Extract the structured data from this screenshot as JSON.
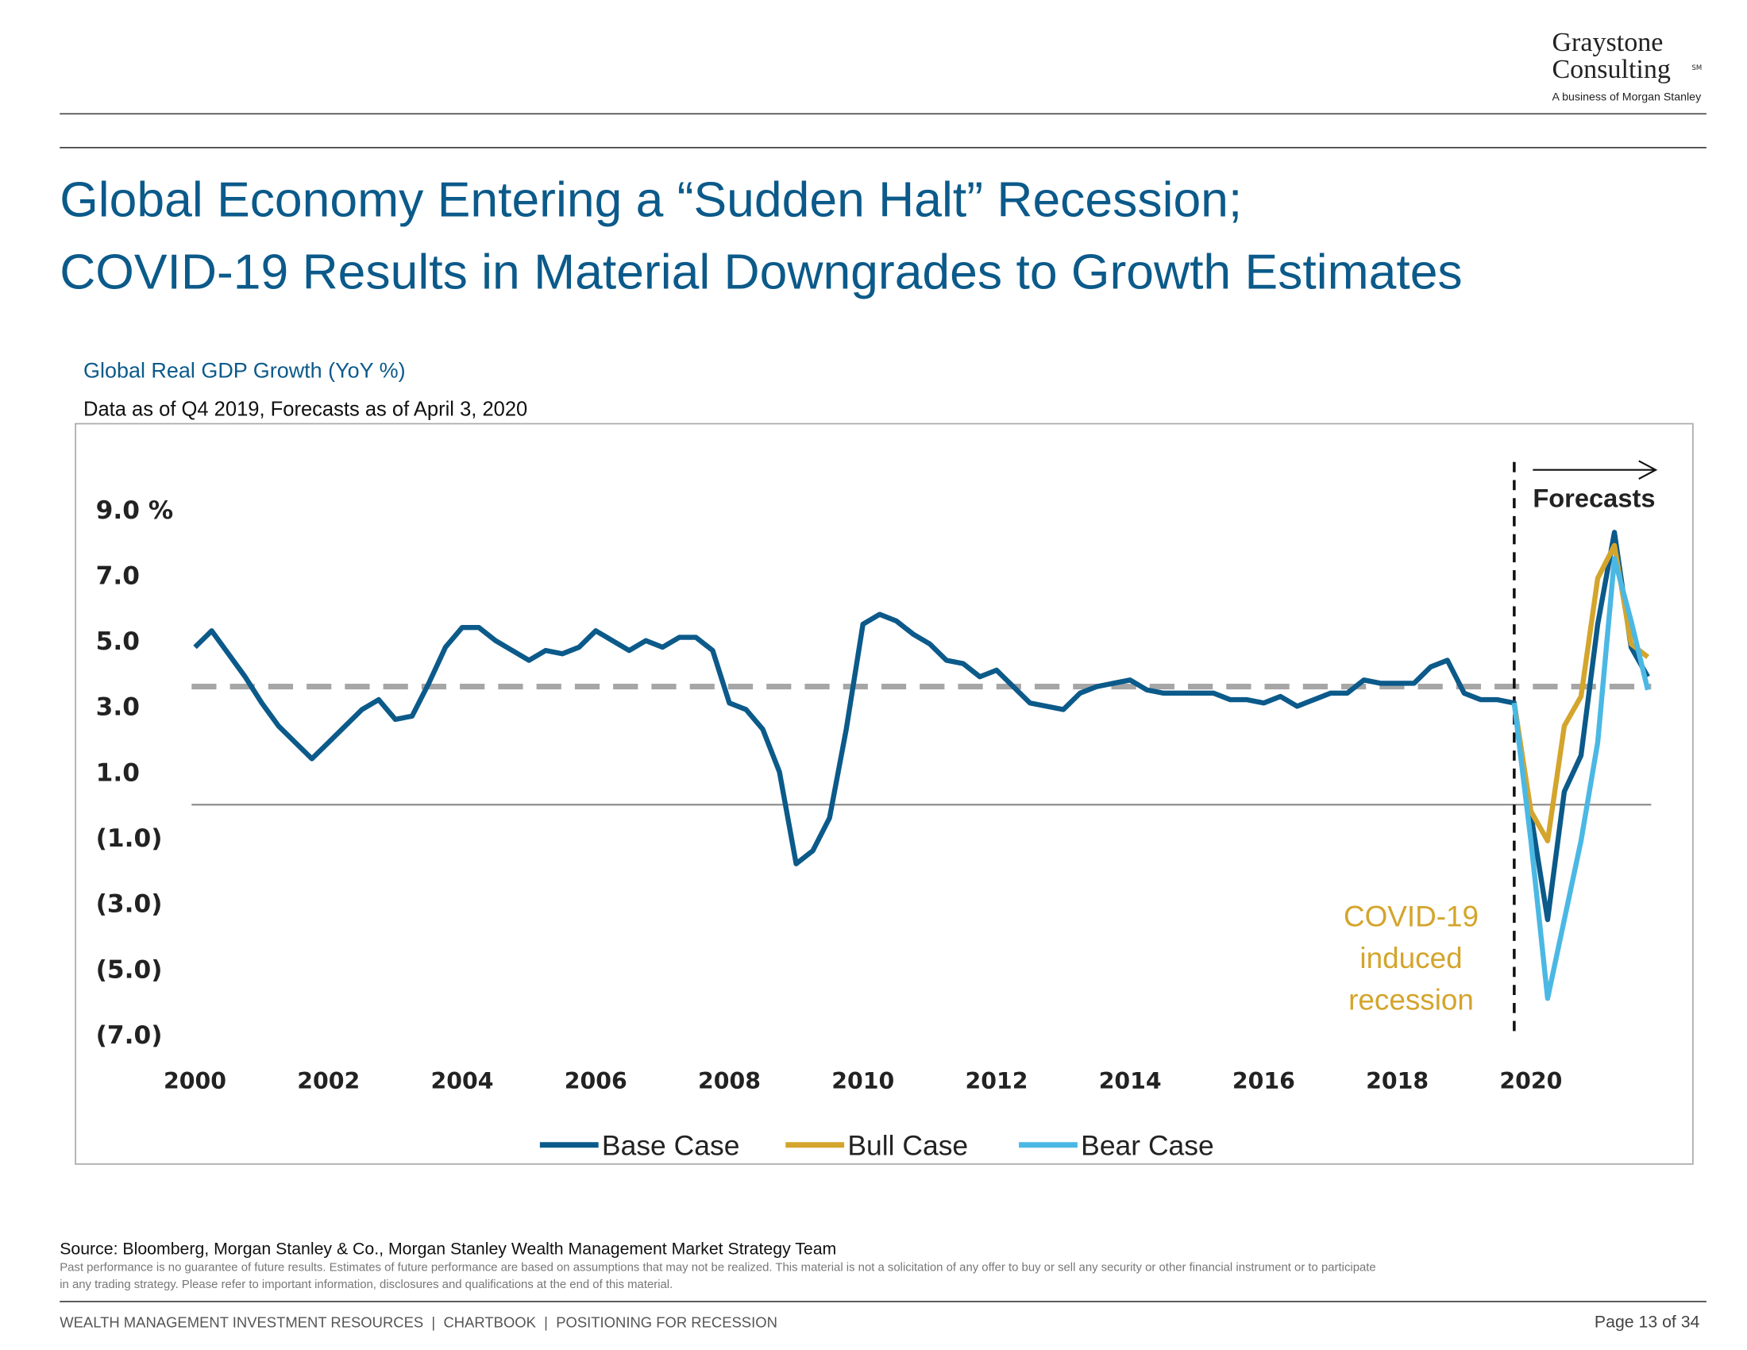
{
  "header": {
    "logo": [
      "Graystone",
      "Consulting"
    ],
    "logo_mark": "SM",
    "logo_tagline": "A business of Morgan Stanley",
    "title": [
      "Global Economy Entering a “Sudden Halt” Recession;",
      "COVID-19 Results in Material Downgrades to Growth Estimates"
    ]
  },
  "chart_data": {
    "type": "line",
    "title": "Global Real GDP Growth (YoY %)",
    "subtitle": "Data as of Q4 2019, Forecasts as of April 3, 2020",
    "x": [
      2000,
      2000.25,
      2000.5,
      2000.75,
      2001,
      2001.25,
      2001.5,
      2001.75,
      2002,
      2002.25,
      2002.5,
      2002.75,
      2003,
      2003.25,
      2003.5,
      2003.75,
      2004,
      2004.25,
      2004.5,
      2004.75,
      2005,
      2005.25,
      2005.5,
      2005.75,
      2006,
      2006.25,
      2006.5,
      2006.75,
      2007,
      2007.25,
      2007.5,
      2007.75,
      2008,
      2008.25,
      2008.5,
      2008.75,
      2009,
      2009.25,
      2009.5,
      2009.75,
      2010,
      2010.25,
      2010.5,
      2010.75,
      2011,
      2011.25,
      2011.5,
      2011.75,
      2012,
      2012.25,
      2012.5,
      2012.75,
      2013,
      2013.25,
      2013.5,
      2013.75,
      2014,
      2014.25,
      2014.5,
      2014.75,
      2015,
      2015.25,
      2015.5,
      2015.75,
      2016,
      2016.25,
      2016.5,
      2016.75,
      2017,
      2017.25,
      2017.5,
      2017.75,
      2018,
      2018.25,
      2018.5,
      2018.75,
      2019,
      2019.25,
      2019.5,
      2019.75,
      2020,
      2020.25,
      2020.5,
      2020.75,
      2021,
      2021.25,
      2021.5,
      2021.75
    ],
    "series": [
      {
        "name": "Base Case",
        "color": "#0b5a8a",
        "values": [
          4.8,
          5.3,
          4.6,
          3.9,
          3.1,
          2.4,
          1.9,
          1.4,
          1.9,
          2.4,
          2.9,
          3.2,
          2.6,
          2.7,
          3.7,
          4.8,
          5.4,
          5.4,
          5.0,
          4.7,
          4.4,
          4.7,
          4.6,
          4.8,
          5.3,
          5.0,
          4.7,
          5.0,
          4.8,
          5.1,
          5.1,
          4.7,
          3.1,
          2.9,
          2.3,
          1.0,
          -1.8,
          -1.4,
          -0.4,
          2.3,
          5.5,
          5.8,
          5.6,
          5.2,
          4.9,
          4.4,
          4.3,
          3.9,
          4.1,
          3.6,
          3.1,
          3.0,
          2.9,
          3.4,
          3.6,
          3.7,
          3.8,
          3.5,
          3.4,
          3.4,
          3.4,
          3.4,
          3.2,
          3.2,
          3.1,
          3.3,
          3.0,
          3.2,
          3.4,
          3.4,
          3.8,
          3.7,
          3.7,
          3.7,
          4.2,
          4.4,
          3.4,
          3.2,
          3.2,
          3.1,
          -0.3,
          -3.5,
          0.4,
          1.5,
          5.5,
          8.3,
          4.8,
          3.9
        ]
      },
      {
        "name": "Bull Case",
        "color": "#d4a52c",
        "values": [
          null,
          null,
          null,
          null,
          null,
          null,
          null,
          null,
          null,
          null,
          null,
          null,
          null,
          null,
          null,
          null,
          null,
          null,
          null,
          null,
          null,
          null,
          null,
          null,
          null,
          null,
          null,
          null,
          null,
          null,
          null,
          null,
          null,
          null,
          null,
          null,
          null,
          null,
          null,
          null,
          null,
          null,
          null,
          null,
          null,
          null,
          null,
          null,
          null,
          null,
          null,
          null,
          null,
          null,
          null,
          null,
          null,
          null,
          null,
          null,
          null,
          null,
          null,
          null,
          null,
          null,
          null,
          null,
          null,
          null,
          null,
          null,
          null,
          null,
          null,
          null,
          null,
          null,
          null,
          3.1,
          -0.2,
          -1.1,
          2.4,
          3.3,
          6.9,
          7.9,
          4.9,
          4.5
        ]
      },
      {
        "name": "Bear Case",
        "color": "#4bb8e4",
        "values": [
          null,
          null,
          null,
          null,
          null,
          null,
          null,
          null,
          null,
          null,
          null,
          null,
          null,
          null,
          null,
          null,
          null,
          null,
          null,
          null,
          null,
          null,
          null,
          null,
          null,
          null,
          null,
          null,
          null,
          null,
          null,
          null,
          null,
          null,
          null,
          null,
          null,
          null,
          null,
          null,
          null,
          null,
          null,
          null,
          null,
          null,
          null,
          null,
          null,
          null,
          null,
          null,
          null,
          null,
          null,
          null,
          null,
          null,
          null,
          null,
          null,
          null,
          null,
          null,
          null,
          null,
          null,
          null,
          null,
          null,
          null,
          null,
          null,
          null,
          null,
          null,
          null,
          null,
          null,
          3.1,
          -1.1,
          -5.9,
          -3.5,
          -1.1,
          1.9,
          7.5,
          5.6,
          3.5
        ]
      }
    ],
    "xlim": [
      2000,
      2021.75
    ],
    "xticks": [
      2000,
      2002,
      2004,
      2006,
      2008,
      2010,
      2012,
      2014,
      2016,
      2018,
      2020
    ],
    "ylim": [
      -7,
      9
    ],
    "yticks": [
      {
        "value": 9,
        "label": "9.0 %"
      },
      {
        "value": 7,
        "label": "7.0"
      },
      {
        "value": 5,
        "label": "5.0"
      },
      {
        "value": 3,
        "label": "3.0"
      },
      {
        "value": 1,
        "label": "1.0"
      },
      {
        "value": -1,
        "label": "(1.0)"
      },
      {
        "value": -3,
        "label": "(3.0)"
      },
      {
        "value": -5,
        "label": "(5.0)"
      },
      {
        "value": -7,
        "label": "(7.0)"
      }
    ],
    "average_line": 3.6,
    "forecast_start": 2019.75,
    "annotations": {
      "forecasts": "Forecasts",
      "covid": [
        "COVID-19",
        "induced",
        "recession"
      ]
    },
    "legend": "bottom"
  },
  "footer": {
    "source": "Source: Bloomberg, Morgan Stanley & Co., Morgan Stanley Wealth Management Market Strategy Team",
    "disclaimer": [
      "Past performance is no guarantee of future results. Estimates of future performance are based on assumptions that may not be realized. This material is not a solicitation of any offer to buy or sell any security or other financial instrument or to participate",
      "in any trading strategy. Please refer to important information, disclosures and qualifications at the end of this material."
    ],
    "breadcrumb": "WEALTH MANAGEMENT INVESTMENT RESOURCES  |  CHARTBOOK  |  POSITIONING FOR RECESSION",
    "page": "Page 13 of 34"
  }
}
